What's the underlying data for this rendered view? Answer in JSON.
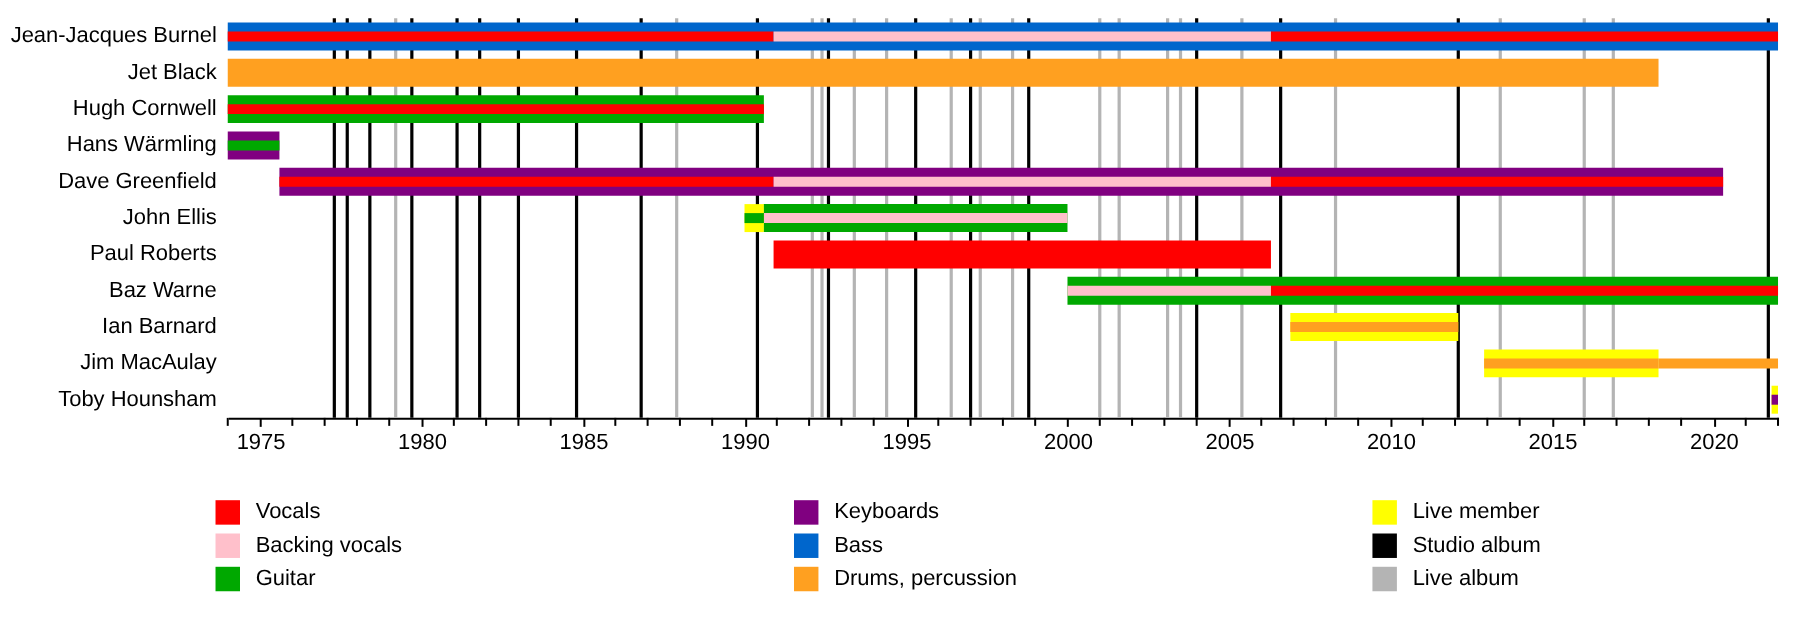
{
  "chart_data": {
    "type": "bar",
    "orientation": "horizontal",
    "legend": "bottom",
    "categories": [
      "Jean-Jacques Burnel",
      "Jet Black",
      "Hugh Cornwell",
      "Hans Wärmling",
      "Dave Greenfield",
      "John Ellis",
      "Paul Roberts",
      "Baz Warne",
      "Ian Barnard",
      "Jim MacAulay",
      "Toby Hounsham"
    ],
    "series": [
      {
        "name": "Vocals",
        "color": "#ff0000",
        "base": [
          1974,
          null,
          1974,
          null,
          1975.6,
          null,
          1990.9,
          2006.3,
          null,
          null,
          null
        ],
        "values": [
          16.9,
          null,
          16.6,
          null,
          15.3,
          null,
          15.4,
          15.7,
          null,
          null,
          null
        ]
      },
      {
        "name": "Backing vocals",
        "color": "#ffc0cb",
        "base": [
          1990.9,
          null,
          null,
          null,
          1990.9,
          1990.6,
          null,
          2000,
          null,
          null,
          null
        ],
        "values": [
          15.4,
          null,
          null,
          null,
          15.4,
          9.4,
          null,
          6.3,
          null,
          null,
          null
        ]
      },
      {
        "name": "Guitar",
        "color": "#00a800",
        "base": [
          null,
          null,
          1974,
          1974,
          null,
          1990.0,
          null,
          2000,
          null,
          null,
          null
        ],
        "values": [
          null,
          null,
          16.6,
          1.6,
          null,
          0.6,
          null,
          22,
          null,
          null,
          null
        ]
      },
      {
        "name": "Keyboards",
        "color": "#800080",
        "base": [
          null,
          null,
          null,
          1974,
          1975.6,
          null,
          null,
          null,
          null,
          null,
          2021.8
        ],
        "values": [
          null,
          null,
          null,
          1.6,
          44.7,
          null,
          null,
          null,
          null,
          null,
          0.2
        ]
      },
      {
        "name": "Bass",
        "color": "#0066cc",
        "base": [
          1974,
          null,
          null,
          null,
          null,
          null,
          null,
          null,
          null,
          null,
          null
        ],
        "values": [
          48,
          null,
          null,
          null,
          null,
          null,
          null,
          null,
          null,
          null,
          null
        ]
      },
      {
        "name": "Drums, percussion",
        "color": "#ffa020",
        "base": [
          null,
          1974,
          null,
          null,
          null,
          null,
          null,
          null,
          2006.9,
          2012.9,
          null
        ],
        "values": [
          null,
          44.3,
          null,
          null,
          null,
          null,
          null,
          null,
          5.2,
          5.4,
          null
        ]
      },
      {
        "name": "Live member",
        "color": "#ffff00",
        "base": [
          null,
          null,
          null,
          null,
          null,
          1990.0,
          null,
          null,
          2006.9,
          2012.9,
          2021.8
        ],
        "values": [
          null,
          null,
          null,
          null,
          null,
          0.6,
          null,
          null,
          5.2,
          5.4,
          0.2
        ]
      },
      {
        "color": "#ff0000",
        "base": [
          2006.3,
          null,
          null,
          null,
          2006.3,
          null,
          null,
          null,
          null,
          null,
          null
        ],
        "values": [
          15.7,
          null,
          null,
          null,
          14.0,
          null,
          null,
          null,
          null,
          null,
          null
        ]
      },
      {
        "color": "#00a800",
        "base": [
          null,
          null,
          null,
          null,
          null,
          1990.6,
          null,
          null,
          null,
          null,
          null
        ],
        "values": [
          null,
          null,
          null,
          null,
          null,
          9.4,
          null,
          null,
          null,
          null,
          null
        ]
      },
      {
        "color": "#ffa020",
        "base": [
          null,
          null,
          null,
          null,
          null,
          null,
          null,
          null,
          null,
          2018.3,
          null
        ],
        "values": [
          null,
          null,
          null,
          null,
          null,
          null,
          null,
          null,
          null,
          3.7,
          null
        ]
      }
    ],
    "xlim": [
      1974,
      2022
    ],
    "xticks": [
      {
        "value": 1974,
        "label": null
      },
      1975,
      {
        "value": 1976,
        "label": null
      },
      {
        "value": 1977,
        "label": null
      },
      {
        "value": 1978,
        "label": null
      },
      {
        "value": 1979,
        "label": null
      },
      1980,
      {
        "value": 1981,
        "label": null
      },
      {
        "value": 1982,
        "label": null
      },
      {
        "value": 1983,
        "label": null
      },
      {
        "value": 1984,
        "label": null
      },
      1985,
      {
        "value": 1986,
        "label": null
      },
      {
        "value": 1987,
        "label": null
      },
      {
        "value": 1988,
        "label": null
      },
      {
        "value": 1989,
        "label": null
      },
      1990,
      {
        "value": 1991,
        "label": null
      },
      {
        "value": 1992,
        "label": null
      },
      {
        "value": 1993,
        "label": null
      },
      {
        "value": 1994,
        "label": null
      },
      1995,
      {
        "value": 1996,
        "label": null
      },
      {
        "value": 1997,
        "label": null
      },
      {
        "value": 1998,
        "label": null
      },
      {
        "value": 1999,
        "label": null
      },
      2000,
      {
        "value": 2001,
        "label": null
      },
      {
        "value": 2002,
        "label": null
      },
      {
        "value": 2003,
        "label": null
      },
      {
        "value": 2004,
        "label": null
      },
      2005,
      {
        "value": 2006,
        "label": null
      },
      {
        "value": 2007,
        "label": null
      },
      {
        "value": 2008,
        "label": null
      },
      {
        "value": 2009,
        "label": null
      },
      2010,
      {
        "value": 2011,
        "label": null
      },
      {
        "value": 2012,
        "label": null
      },
      {
        "value": 2013,
        "label": null
      },
      {
        "value": 2014,
        "label": null
      },
      2015,
      {
        "value": 2016,
        "label": null
      },
      {
        "value": 2017,
        "label": null
      },
      {
        "value": 2018,
        "label": null
      },
      {
        "value": 2019,
        "label": null
      },
      2020,
      {
        "value": 2021,
        "label": null
      },
      {
        "value": 2022,
        "label": null
      }
    ],
    "ref_lines": [
      {
        "axis": "x",
        "value": 1977.3,
        "label": "Studio album",
        "color": "#000000"
      },
      {
        "axis": "x",
        "value": 1977.7,
        "color": "#000000"
      },
      {
        "axis": "x",
        "value": 1978.4,
        "color": "#000000"
      },
      {
        "axis": "x",
        "value": 1979.7,
        "color": "#000000"
      },
      {
        "axis": "x",
        "value": 1981.1,
        "color": "#000000"
      },
      {
        "axis": "x",
        "value": 1981.8,
        "color": "#000000"
      },
      {
        "axis": "x",
        "value": 1983.0,
        "color": "#000000"
      },
      {
        "axis": "x",
        "value": 1984.8,
        "color": "#000000"
      },
      {
        "axis": "x",
        "value": 1986.8,
        "color": "#000000"
      },
      {
        "axis": "x",
        "value": 1990.4,
        "color": "#000000"
      },
      {
        "axis": "x",
        "value": 1992.6,
        "color": "#000000"
      },
      {
        "axis": "x",
        "value": 1995.3,
        "color": "#000000"
      },
      {
        "axis": "x",
        "value": 1997.0,
        "color": "#000000"
      },
      {
        "axis": "x",
        "value": 1998.8,
        "color": "#000000"
      },
      {
        "axis": "x",
        "value": 2004.0,
        "color": "#000000"
      },
      {
        "axis": "x",
        "value": 2006.6,
        "color": "#000000"
      },
      {
        "axis": "x",
        "value": 2012.1,
        "color": "#000000"
      },
      {
        "axis": "x",
        "value": 2021.7,
        "color": "#000000"
      },
      {
        "axis": "x",
        "value": 1979.2,
        "label": "Live album",
        "color": "#b4b4b4"
      },
      {
        "axis": "x",
        "value": 1987.9,
        "color": "#b4b4b4"
      },
      {
        "axis": "x",
        "value": 1992.1,
        "color": "#b4b4b4"
      },
      {
        "axis": "x",
        "value": 1992.4,
        "color": "#b4b4b4"
      },
      {
        "axis": "x",
        "value": 1993.4,
        "color": "#b4b4b4"
      },
      {
        "axis": "x",
        "value": 1994.4,
        "color": "#b4b4b4"
      },
      {
        "axis": "x",
        "value": 1996.4,
        "color": "#b4b4b4"
      },
      {
        "axis": "x",
        "value": 1997.3,
        "color": "#b4b4b4"
      },
      {
        "axis": "x",
        "value": 1998.3,
        "color": "#b4b4b4"
      },
      {
        "axis": "x",
        "value": 2001.0,
        "color": "#b4b4b4"
      },
      {
        "axis": "x",
        "value": 2001.6,
        "color": "#b4b4b4"
      },
      {
        "axis": "x",
        "value": 2003.1,
        "color": "#b4b4b4"
      },
      {
        "axis": "x",
        "value": 2003.5,
        "color": "#b4b4b4"
      },
      {
        "axis": "x",
        "value": 2005.4,
        "color": "#b4b4b4"
      },
      {
        "axis": "x",
        "value": 2008.3,
        "color": "#b4b4b4"
      },
      {
        "axis": "x",
        "value": 2013.4,
        "color": "#b4b4b4"
      },
      {
        "axis": "x",
        "value": 2016.0,
        "color": "#b4b4b4"
      },
      {
        "axis": "x",
        "value": 2016.9,
        "color": "#b4b4b4"
      }
    ]
  }
}
